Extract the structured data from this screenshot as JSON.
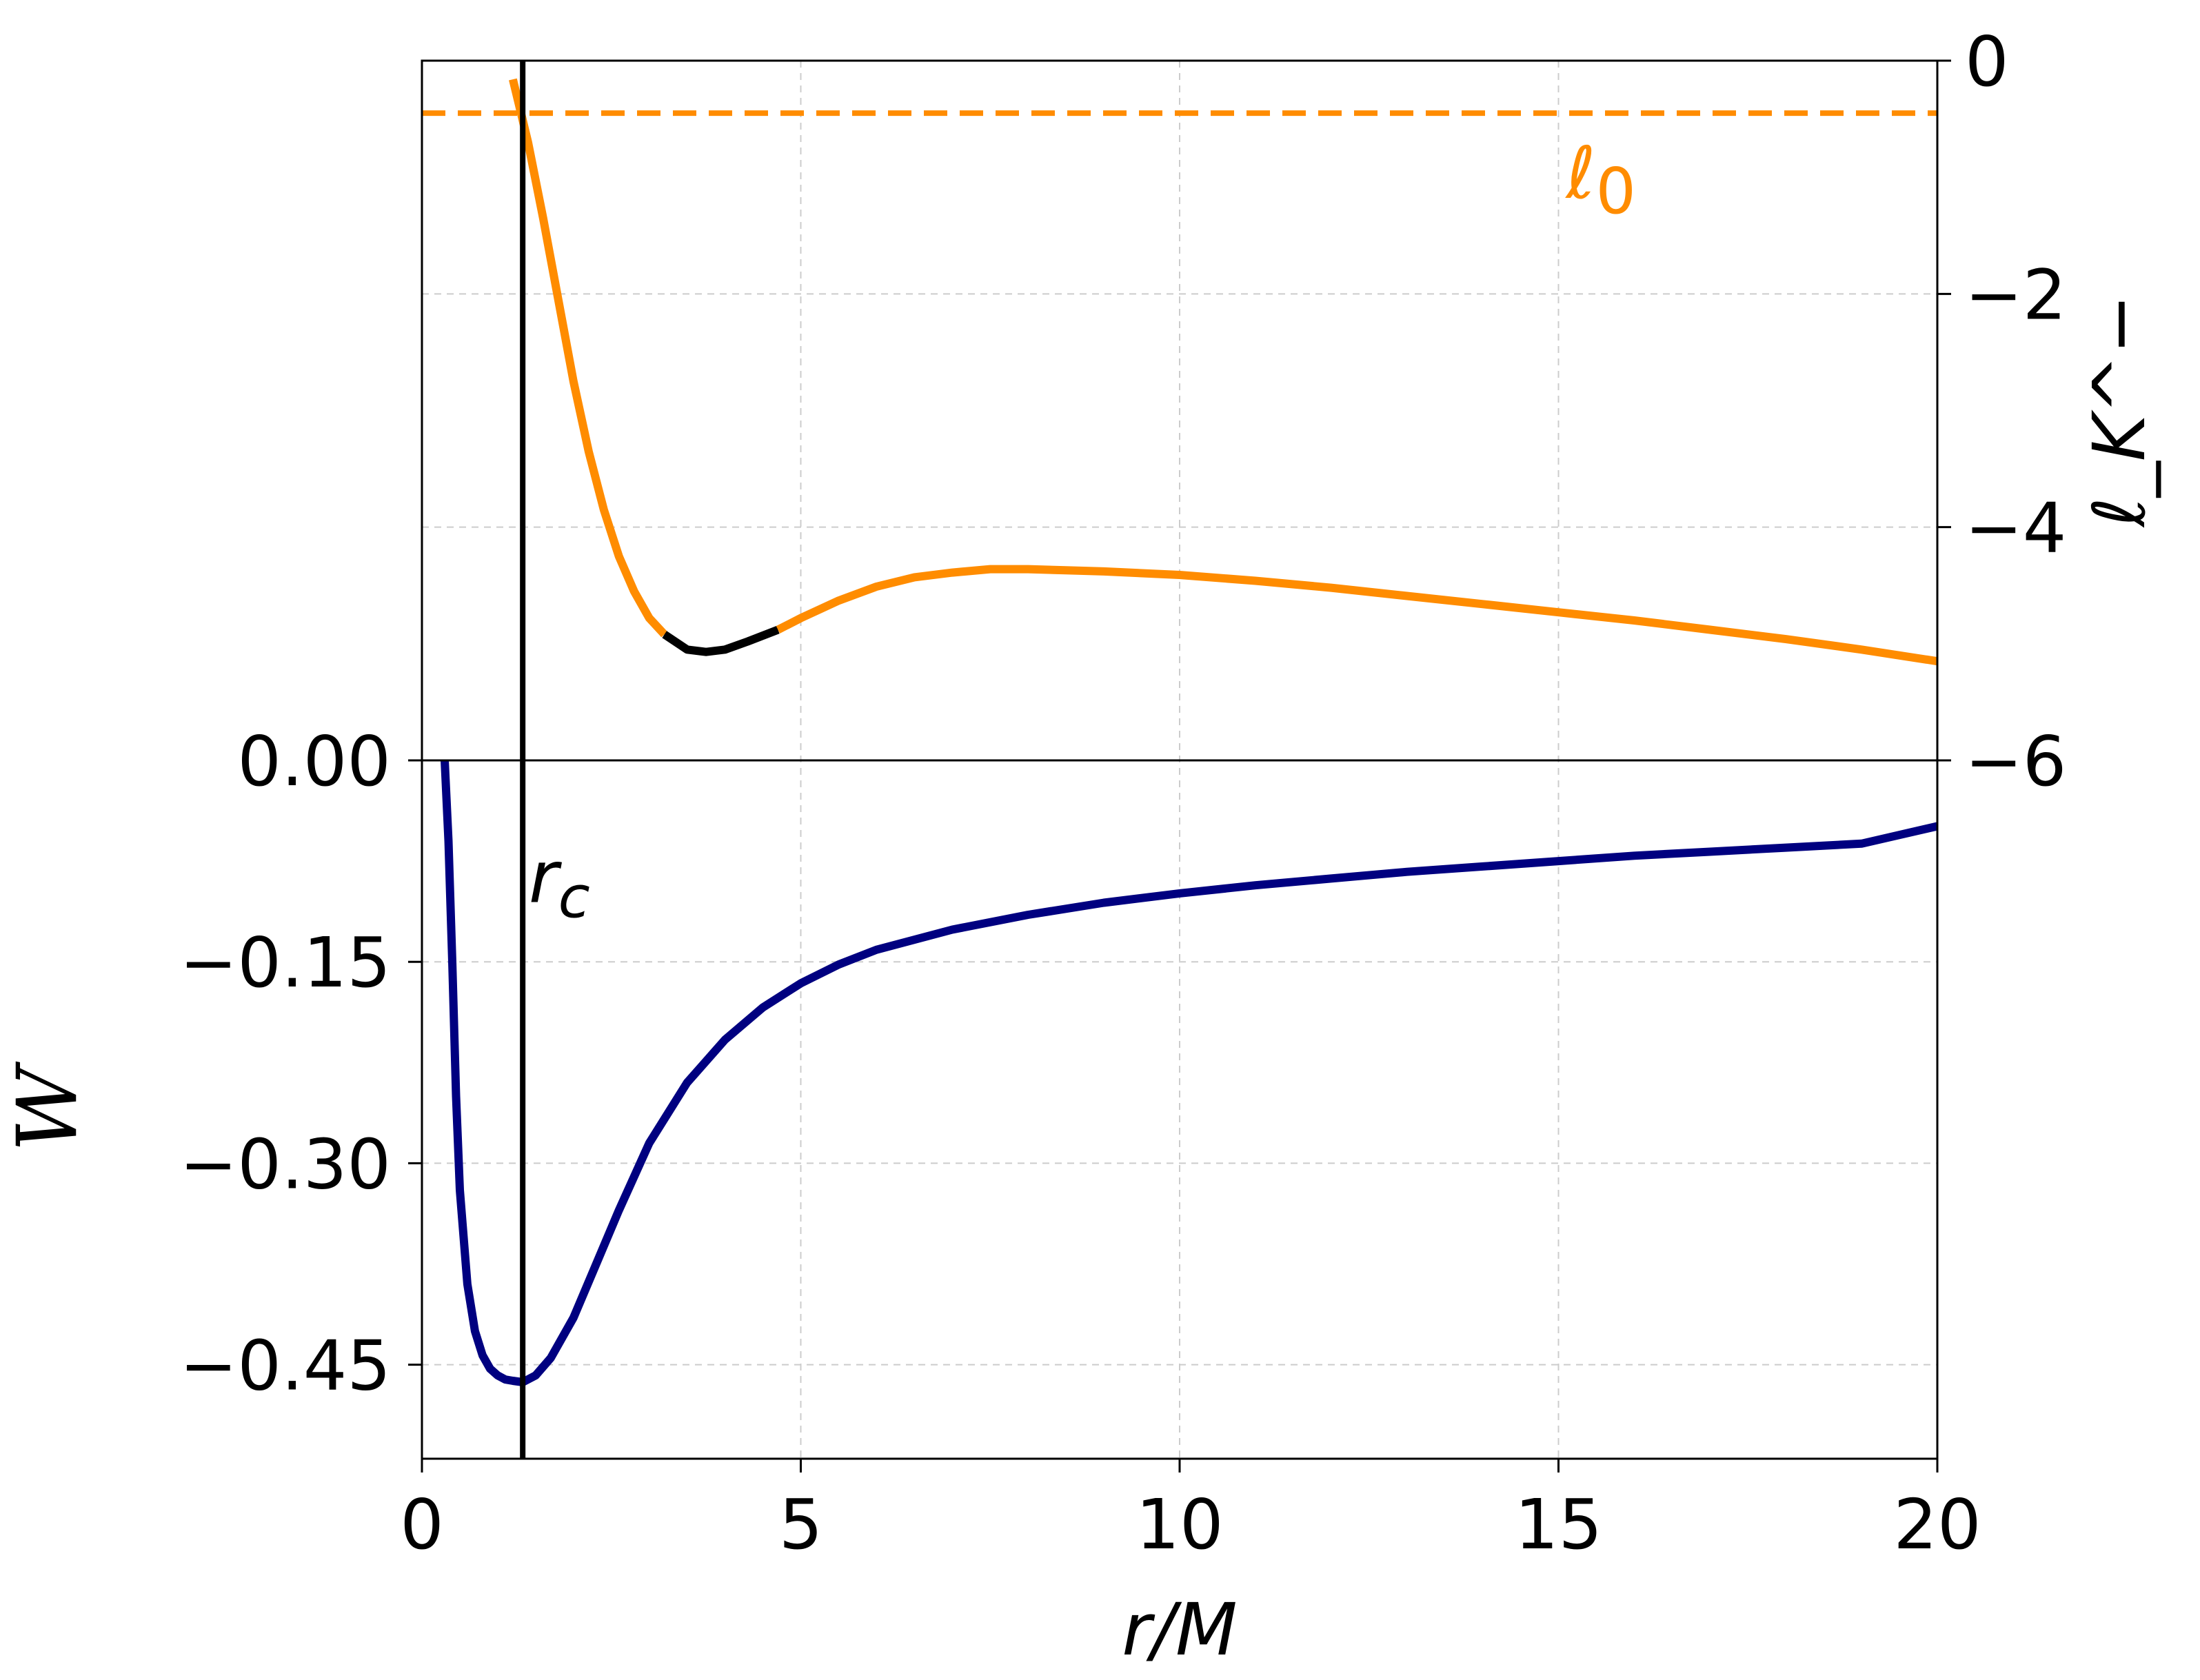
{
  "chart_data": {
    "type": "line",
    "xlabel": "r/M",
    "xlim": [
      0,
      20
    ],
    "x_ticks": [
      "0",
      "5",
      "10",
      "15",
      "20"
    ],
    "grid": true,
    "grid_color": "#cccccc",
    "upper_panel": {
      "ylabel": "ℓ_K^−",
      "y_axis_side": "right",
      "ylim": [
        -6,
        0
      ],
      "y_ticks": [
        "0",
        "−2",
        "−4",
        "−6"
      ],
      "series": [
        {
          "color": "#ff8c00",
          "style": "solid",
          "x": [
            1.2,
            1.4,
            1.6,
            1.8,
            2.0,
            2.2,
            2.4,
            2.6,
            2.8,
            3.0,
            3.2
          ],
          "y": [
            -0.16,
            -0.7,
            -1.35,
            -2.05,
            -2.75,
            -3.35,
            -3.85,
            -4.25,
            -4.55,
            -4.78,
            -4.92
          ]
        },
        {
          "color": "#000000",
          "style": "solid",
          "x": [
            3.2,
            3.5,
            3.75,
            4.0,
            4.3,
            4.7
          ],
          "y": [
            -4.92,
            -5.05,
            -5.07,
            -5.05,
            -4.98,
            -4.88
          ]
        },
        {
          "color": "#ff8c00",
          "style": "solid",
          "x": [
            4.7,
            5.0,
            5.5,
            6.0,
            6.5,
            7.0,
            7.5,
            8.0,
            8.5,
            9.0,
            10.0,
            11.0,
            12.0,
            13.0,
            14.0,
            15.0,
            16.0,
            17.0,
            18.0,
            19.0,
            20.0
          ],
          "y": [
            -4.88,
            -4.78,
            -4.63,
            -4.51,
            -4.43,
            -4.39,
            -4.36,
            -4.36,
            -4.37,
            -4.38,
            -4.41,
            -4.46,
            -4.52,
            -4.59,
            -4.66,
            -4.73,
            -4.8,
            -4.88,
            -4.96,
            -5.05,
            -5.15
          ]
        },
        {
          "color": "#ff8c00",
          "style": "dashed",
          "x": [
            0,
            20
          ],
          "y": [
            -0.45,
            -0.45
          ]
        }
      ]
    },
    "lower_panel": {
      "ylabel": "W",
      "y_axis_side": "left",
      "ylim": [
        -0.52,
        0
      ],
      "y_ticks": [
        {
          "value": 0,
          "label": "0.00"
        },
        {
          "value": -0.15,
          "label": "−0.15"
        },
        {
          "value": -0.3,
          "label": "−0.30"
        },
        {
          "value": -0.45,
          "label": "−0.45"
        }
      ],
      "series": [
        {
          "color": "#000080",
          "style": "solid",
          "x": [
            0.3,
            0.35,
            0.4,
            0.45,
            0.5,
            0.6,
            0.7,
            0.8,
            0.9,
            1.0,
            1.1,
            1.2,
            1.33,
            1.5,
            1.7,
            2.0,
            2.3,
            2.6,
            3.0,
            3.5,
            4.0,
            4.5,
            5.0,
            5.5,
            6.0,
            7.0,
            8.0,
            9.0,
            10.0,
            11.0,
            12.0,
            13.0,
            14.0,
            15.0,
            16.0,
            17.0,
            18.0,
            19.0,
            20.0
          ],
          "y": [
            0.0,
            -0.06,
            -0.15,
            -0.25,
            -0.32,
            -0.39,
            -0.425,
            -0.443,
            -0.453,
            -0.458,
            -0.461,
            -0.462,
            -0.463,
            -0.458,
            -0.445,
            -0.415,
            -0.375,
            -0.335,
            -0.285,
            -0.24,
            -0.208,
            -0.184,
            -0.166,
            -0.152,
            -0.141,
            -0.126,
            -0.115,
            -0.106,
            -0.099,
            -0.093,
            -0.088,
            -0.083,
            -0.079,
            -0.075,
            -0.071,
            -0.068,
            -0.065,
            -0.062,
            -0.049
          ]
        }
      ]
    },
    "vertical_line": {
      "x": 1.33,
      "color": "#000000"
    },
    "annotations": {
      "l0": {
        "text": "ℓ",
        "sub": "0",
        "x": 15.1,
        "y_upper": -1.0,
        "color": "#ff8c00"
      },
      "rc": {
        "text": "r",
        "sub": "c",
        "x": 1.5,
        "y_lower": -0.09,
        "color": "#000000"
      }
    }
  }
}
